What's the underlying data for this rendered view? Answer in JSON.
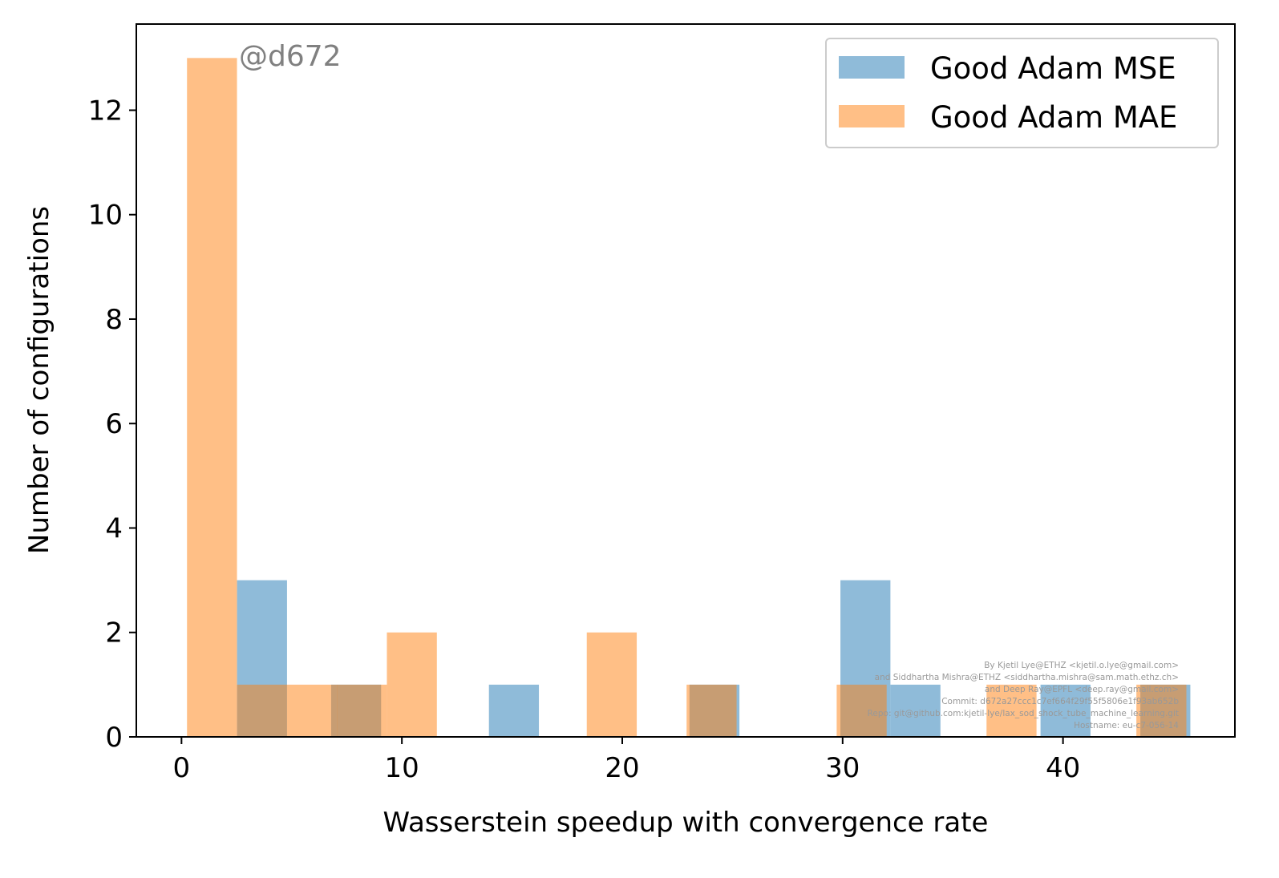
{
  "chart_data": {
    "type": "bar",
    "title": "",
    "xlabel": "Wasserstein speedup with convergence rate",
    "ylabel": "Number of configurations",
    "xlim": [
      -2.05,
      47.8
    ],
    "ylim": [
      0,
      13.65
    ],
    "xticks": [
      0,
      10,
      20,
      30,
      40
    ],
    "yticks": [
      0,
      2,
      4,
      6,
      8,
      10,
      12
    ],
    "grid": false,
    "legend_position": "top-right",
    "bin_width": 2.268,
    "series": [
      {
        "name": "Good Adam MSE",
        "color": "#1f77b4",
        "opacity": 0.5,
        "bins": [
          {
            "x0": 2.52,
            "count": 3
          },
          {
            "x0": 6.79,
            "count": 1
          },
          {
            "x0": 13.95,
            "count": 1
          },
          {
            "x0": 23.05,
            "count": 1
          },
          {
            "x0": 29.9,
            "count": 3
          },
          {
            "x0": 32.17,
            "count": 1
          },
          {
            "x0": 38.98,
            "count": 1
          },
          {
            "x0": 43.51,
            "count": 1
          }
        ]
      },
      {
        "name": "Good Adam MAE",
        "color": "#ff7f0e",
        "opacity": 0.5,
        "bins": [
          {
            "x0": 0.25,
            "count": 13
          },
          {
            "x0": 2.52,
            "count": 1
          },
          {
            "x0": 4.79,
            "count": 1
          },
          {
            "x0": 7.05,
            "count": 1
          },
          {
            "x0": 9.32,
            "count": 2
          },
          {
            "x0": 18.39,
            "count": 2
          },
          {
            "x0": 22.92,
            "count": 1
          },
          {
            "x0": 29.73,
            "count": 1
          },
          {
            "x0": 36.53,
            "count": 1
          },
          {
            "x0": 43.33,
            "count": 1
          }
        ]
      }
    ],
    "annotations": {
      "tag": "@d672",
      "credits": [
        "By Kjetil Lye@ETHZ <kjetil.o.lye@gmail.com>",
        "and Siddhartha Mishra@ETHZ <siddhartha.mishra@sam.math.ethz.ch>",
        "and Deep Ray@EPFL <deep.ray@gmail.com>",
        "Commit: d672a27ccc1c7ef664f29f55f5806e1f93ab652b",
        "Repo: git@github.com:kjetil-lye/lax_sod_shock_tube_machine_learning.git",
        "Hostname: eu-c7-056-14"
      ]
    }
  }
}
